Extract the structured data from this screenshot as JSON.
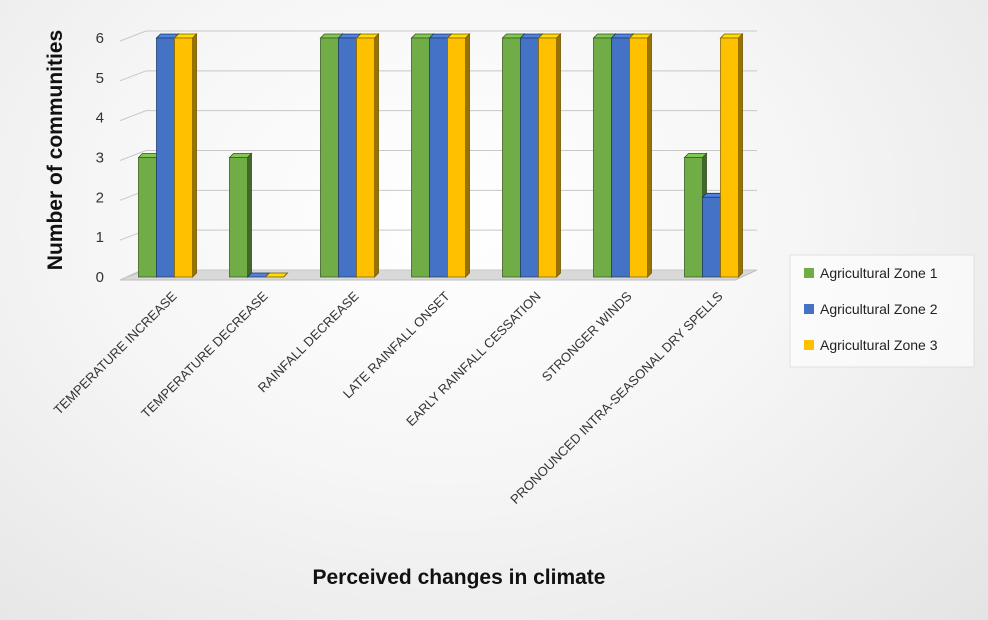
{
  "chart_data": {
    "type": "bar",
    "style": "3d-clustered-column",
    "categories": [
      "TEMPERATURE INCREASE",
      "TEMPERATURE DECREASE",
      "RAINFALL DECREASE",
      "LATE RAINFALL ONSET",
      "EARLY RAINFALL CESSATION",
      "STRONGER WINDS",
      "PRONOUNCED INTRA-SEASONAL DRY SPELLS"
    ],
    "series": [
      {
        "name": "Agricultural Zone 1",
        "color": "#70AD47",
        "values": [
          3,
          3,
          6,
          6,
          6,
          6,
          3
        ]
      },
      {
        "name": "Agricultural Zone 2",
        "color": "#4472C4",
        "values": [
          6,
          0,
          6,
          6,
          6,
          6,
          2
        ]
      },
      {
        "name": "Agricultural Zone 3",
        "color": "#FFC000",
        "values": [
          6,
          0,
          6,
          6,
          6,
          6,
          6
        ]
      }
    ],
    "xlabel": "Perceived changes in climate",
    "ylabel": "Number of communities",
    "ylim": [
      0,
      6
    ],
    "yticks": [
      "0",
      "1",
      "2",
      "3",
      "4",
      "5",
      "6"
    ],
    "grid": true,
    "legend_position": "right"
  }
}
